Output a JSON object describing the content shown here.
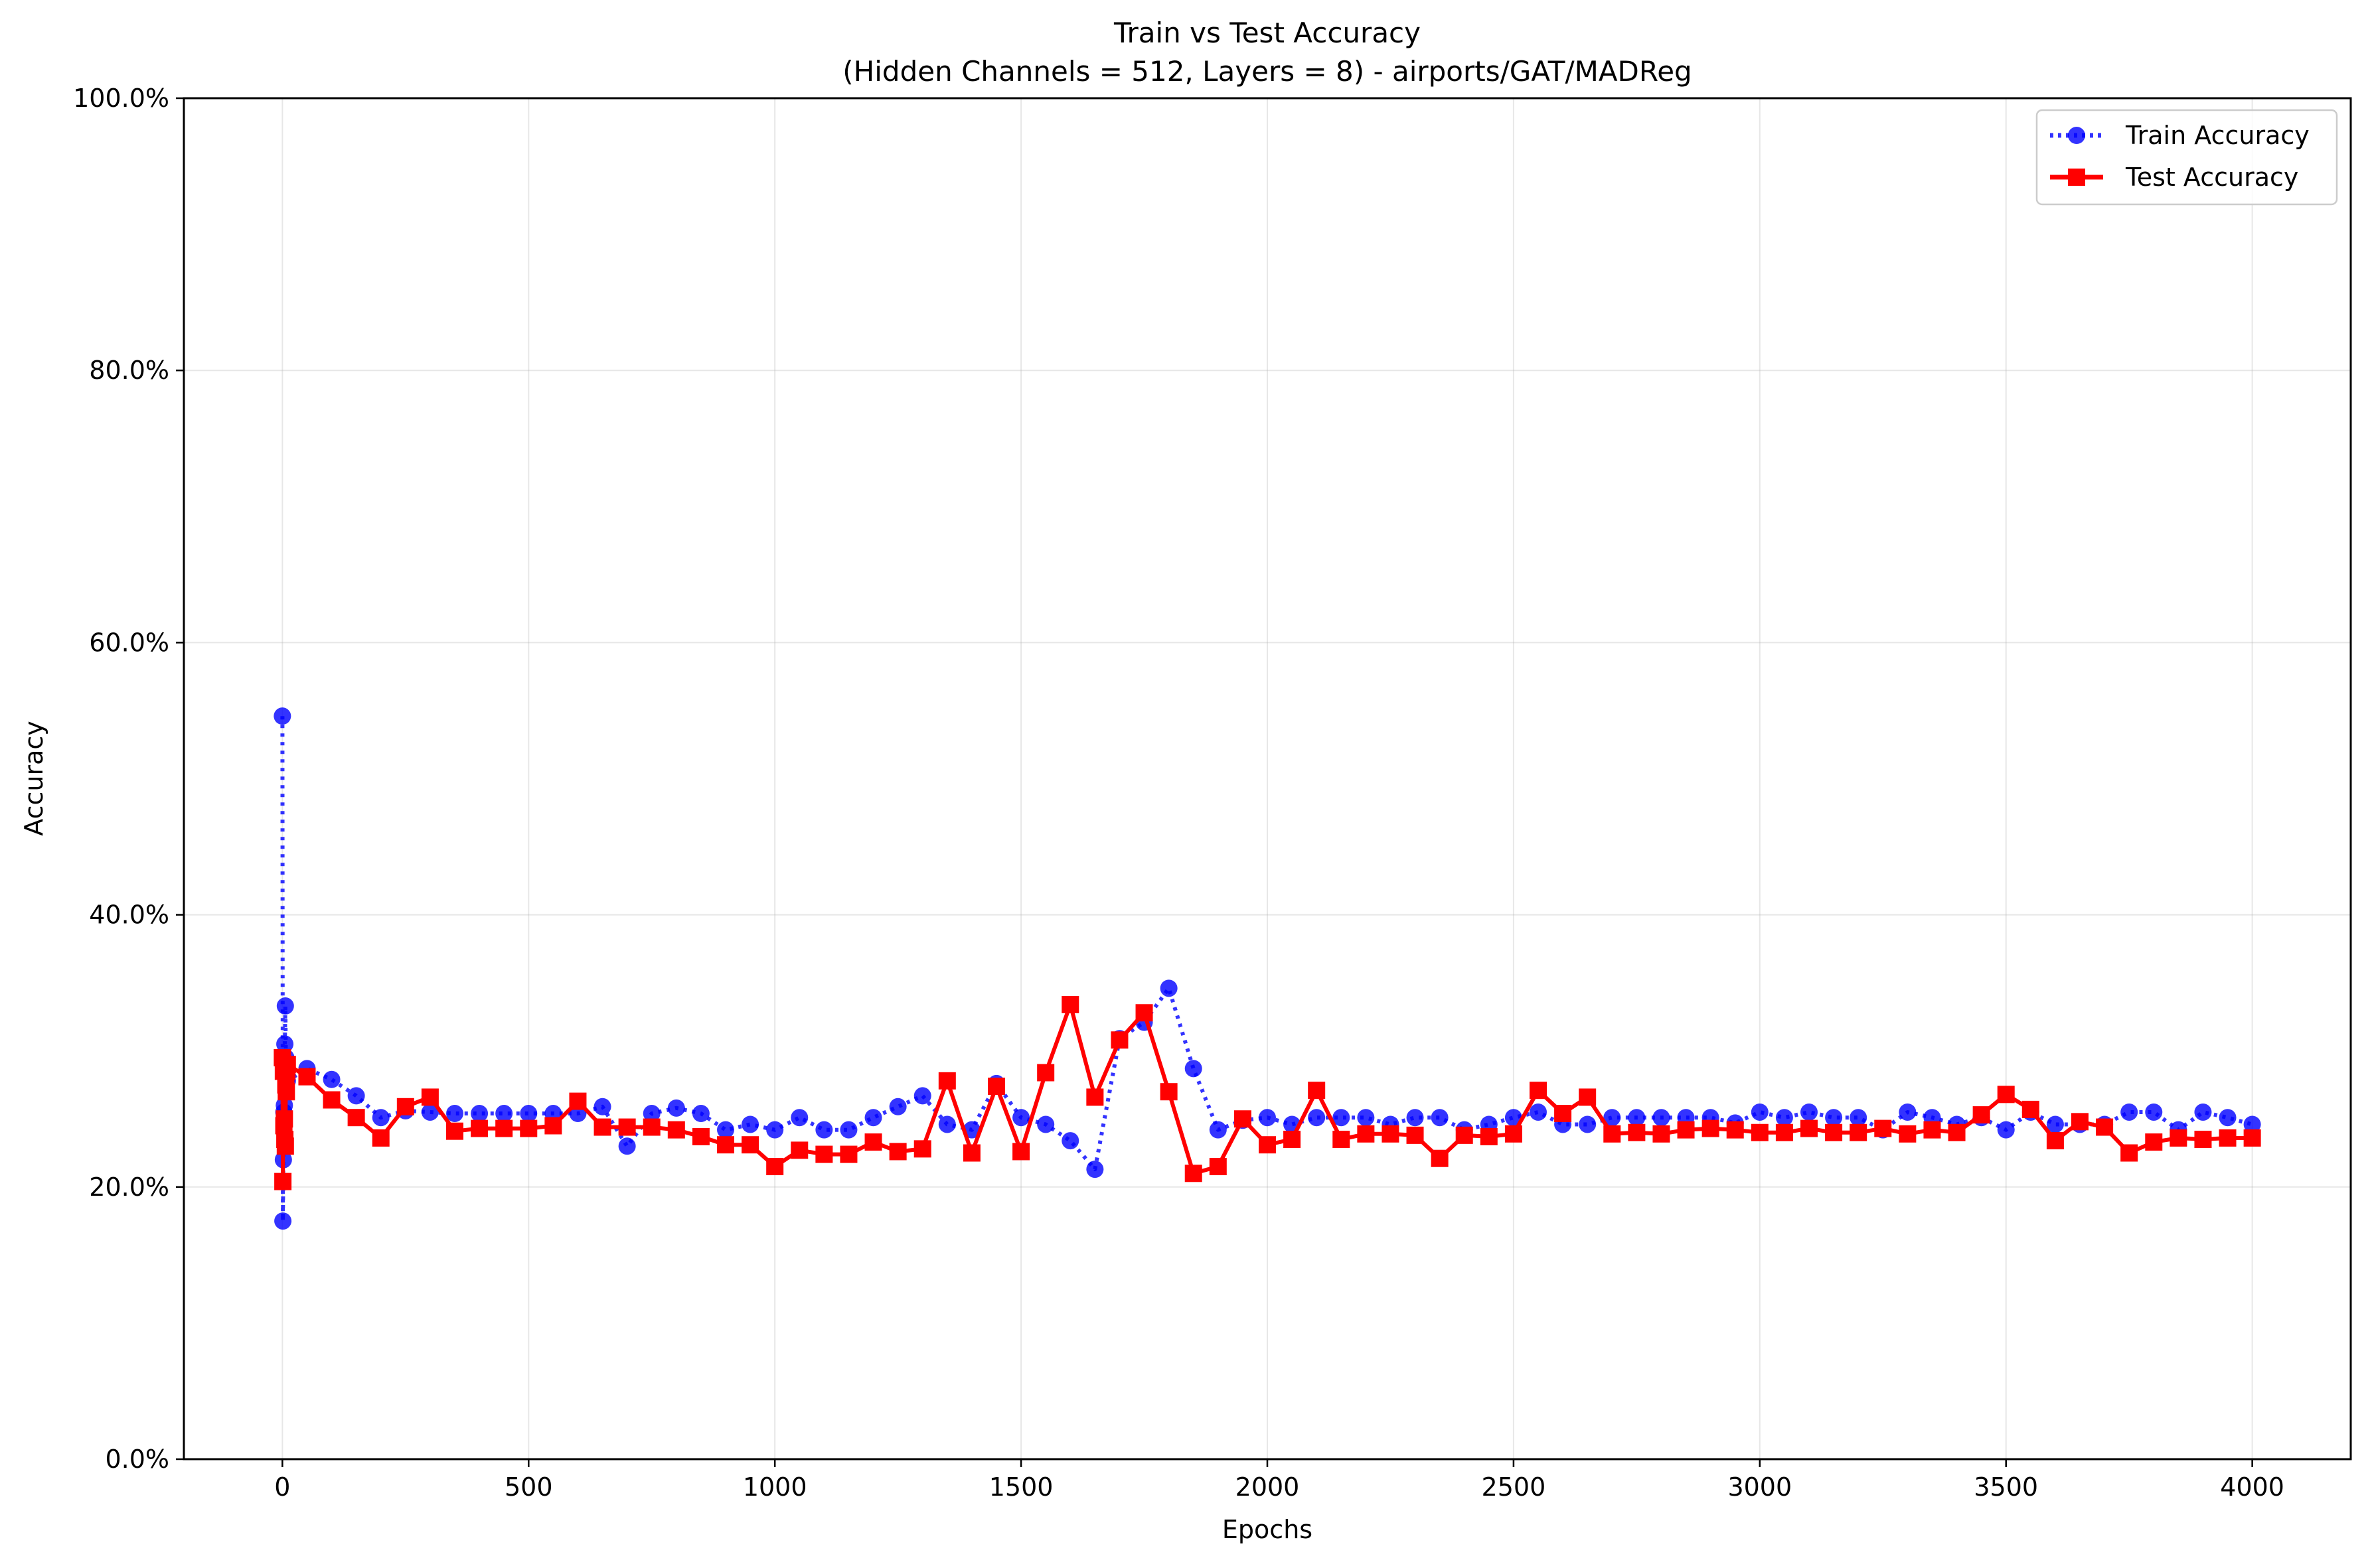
{
  "chart_data": {
    "type": "line",
    "title": "Train vs Test Accuracy",
    "subtitle": "(Hidden Channels = 512, Layers = 8) - airports/GAT/MADReg",
    "xlabel": "Epochs",
    "ylabel": "Accuracy",
    "xlim": [
      -200,
      4200
    ],
    "ylim": [
      0,
      1.0
    ],
    "xticks": [
      0,
      500,
      1000,
      1500,
      2000,
      2500,
      3000,
      3500,
      4000
    ],
    "xtick_labels": [
      "0",
      "500",
      "1000",
      "1500",
      "2000",
      "2500",
      "3000",
      "3500",
      "4000"
    ],
    "yticks": [
      0,
      0.2,
      0.4,
      0.6,
      0.8,
      1.0
    ],
    "ytick_labels": [
      "0.0%",
      "20.0%",
      "40.0%",
      "60.0%",
      "80.0%",
      "100.0%"
    ],
    "grid": true,
    "legend_position": "top-right",
    "series": [
      {
        "name": "Train Accuracy",
        "color": "#0000ff",
        "line_style": "dotted",
        "marker": "circle",
        "x": [
          0,
          1,
          2,
          3,
          4,
          5,
          6,
          7,
          8,
          9,
          10,
          50,
          100,
          150,
          200,
          250,
          300,
          350,
          400,
          450,
          500,
          550,
          600,
          650,
          700,
          750,
          800,
          850,
          900,
          950,
          1000,
          1050,
          1100,
          1150,
          1200,
          1250,
          1300,
          1350,
          1400,
          1450,
          1500,
          1550,
          1600,
          1650,
          1700,
          1750,
          1800,
          1850,
          1900,
          1950,
          2000,
          2050,
          2100,
          2150,
          2200,
          2250,
          2300,
          2350,
          2400,
          2450,
          2500,
          2550,
          2600,
          2650,
          2700,
          2750,
          2800,
          2850,
          2900,
          2950,
          3000,
          3050,
          3100,
          3150,
          3200,
          3250,
          3300,
          3350,
          3400,
          3450,
          3500,
          3550,
          3600,
          3650,
          3700,
          3750,
          3800,
          3850,
          3900,
          3950,
          4000
        ],
        "y": [
          0.546,
          0.175,
          0.22,
          0.255,
          0.26,
          0.305,
          0.333,
          0.295,
          0.285,
          0.28,
          0.278,
          0.287,
          0.279,
          0.267,
          0.251,
          0.256,
          0.255,
          0.254,
          0.254,
          0.254,
          0.254,
          0.254,
          0.254,
          0.259,
          0.23,
          0.254,
          0.258,
          0.254,
          0.242,
          0.246,
          0.242,
          0.251,
          0.242,
          0.242,
          0.251,
          0.259,
          0.267,
          0.246,
          0.242,
          0.276,
          0.251,
          0.246,
          0.234,
          0.213,
          0.309,
          0.321,
          0.346,
          0.287,
          0.242,
          0.249,
          0.251,
          0.246,
          0.251,
          0.251,
          0.251,
          0.246,
          0.251,
          0.251,
          0.242,
          0.246,
          0.251,
          0.255,
          0.246,
          0.246,
          0.251,
          0.251,
          0.251,
          0.251,
          0.251,
          0.247,
          0.255,
          0.251,
          0.255,
          0.251,
          0.251,
          0.242,
          0.255,
          0.251,
          0.246,
          0.251,
          0.242,
          0.255,
          0.246,
          0.246,
          0.246,
          0.255,
          0.255,
          0.242,
          0.255,
          0.251,
          0.246
        ]
      },
      {
        "name": "Test Accuracy",
        "color": "#ff0000",
        "line_style": "solid",
        "marker": "square",
        "x": [
          0,
          1,
          2,
          3,
          4,
          5,
          6,
          7,
          8,
          9,
          10,
          50,
          100,
          150,
          200,
          250,
          300,
          350,
          400,
          450,
          500,
          550,
          600,
          650,
          700,
          750,
          800,
          850,
          900,
          950,
          1000,
          1050,
          1100,
          1150,
          1200,
          1250,
          1300,
          1350,
          1400,
          1450,
          1500,
          1550,
          1600,
          1650,
          1700,
          1750,
          1800,
          1850,
          1900,
          1950,
          2000,
          2050,
          2100,
          2150,
          2200,
          2250,
          2300,
          2350,
          2400,
          2450,
          2500,
          2550,
          2600,
          2650,
          2700,
          2750,
          2800,
          2850,
          2900,
          2950,
          3000,
          3050,
          3100,
          3150,
          3200,
          3250,
          3300,
          3350,
          3400,
          3450,
          3500,
          3550,
          3600,
          3650,
          3700,
          3750,
          3800,
          3850,
          3900,
          3950,
          4000
        ],
        "y": [
          0.295,
          0.204,
          0.285,
          0.245,
          0.25,
          0.235,
          0.23,
          0.275,
          0.27,
          0.285,
          0.29,
          0.281,
          0.264,
          0.251,
          0.236,
          0.259,
          0.266,
          0.241,
          0.243,
          0.243,
          0.243,
          0.245,
          0.263,
          0.244,
          0.244,
          0.244,
          0.242,
          0.237,
          0.231,
          0.231,
          0.215,
          0.227,
          0.224,
          0.224,
          0.233,
          0.226,
          0.228,
          0.278,
          0.225,
          0.274,
          0.226,
          0.284,
          0.334,
          0.266,
          0.308,
          0.328,
          0.27,
          0.21,
          0.215,
          0.25,
          0.231,
          0.235,
          0.271,
          0.235,
          0.239,
          0.239,
          0.238,
          0.221,
          0.238,
          0.237,
          0.239,
          0.271,
          0.254,
          0.266,
          0.239,
          0.24,
          0.239,
          0.242,
          0.243,
          0.242,
          0.24,
          0.24,
          0.243,
          0.24,
          0.24,
          0.243,
          0.239,
          0.242,
          0.24,
          0.253,
          0.268,
          0.257,
          0.234,
          0.248,
          0.244,
          0.225,
          0.233,
          0.236,
          0.235,
          0.236,
          0.236
        ]
      }
    ]
  }
}
